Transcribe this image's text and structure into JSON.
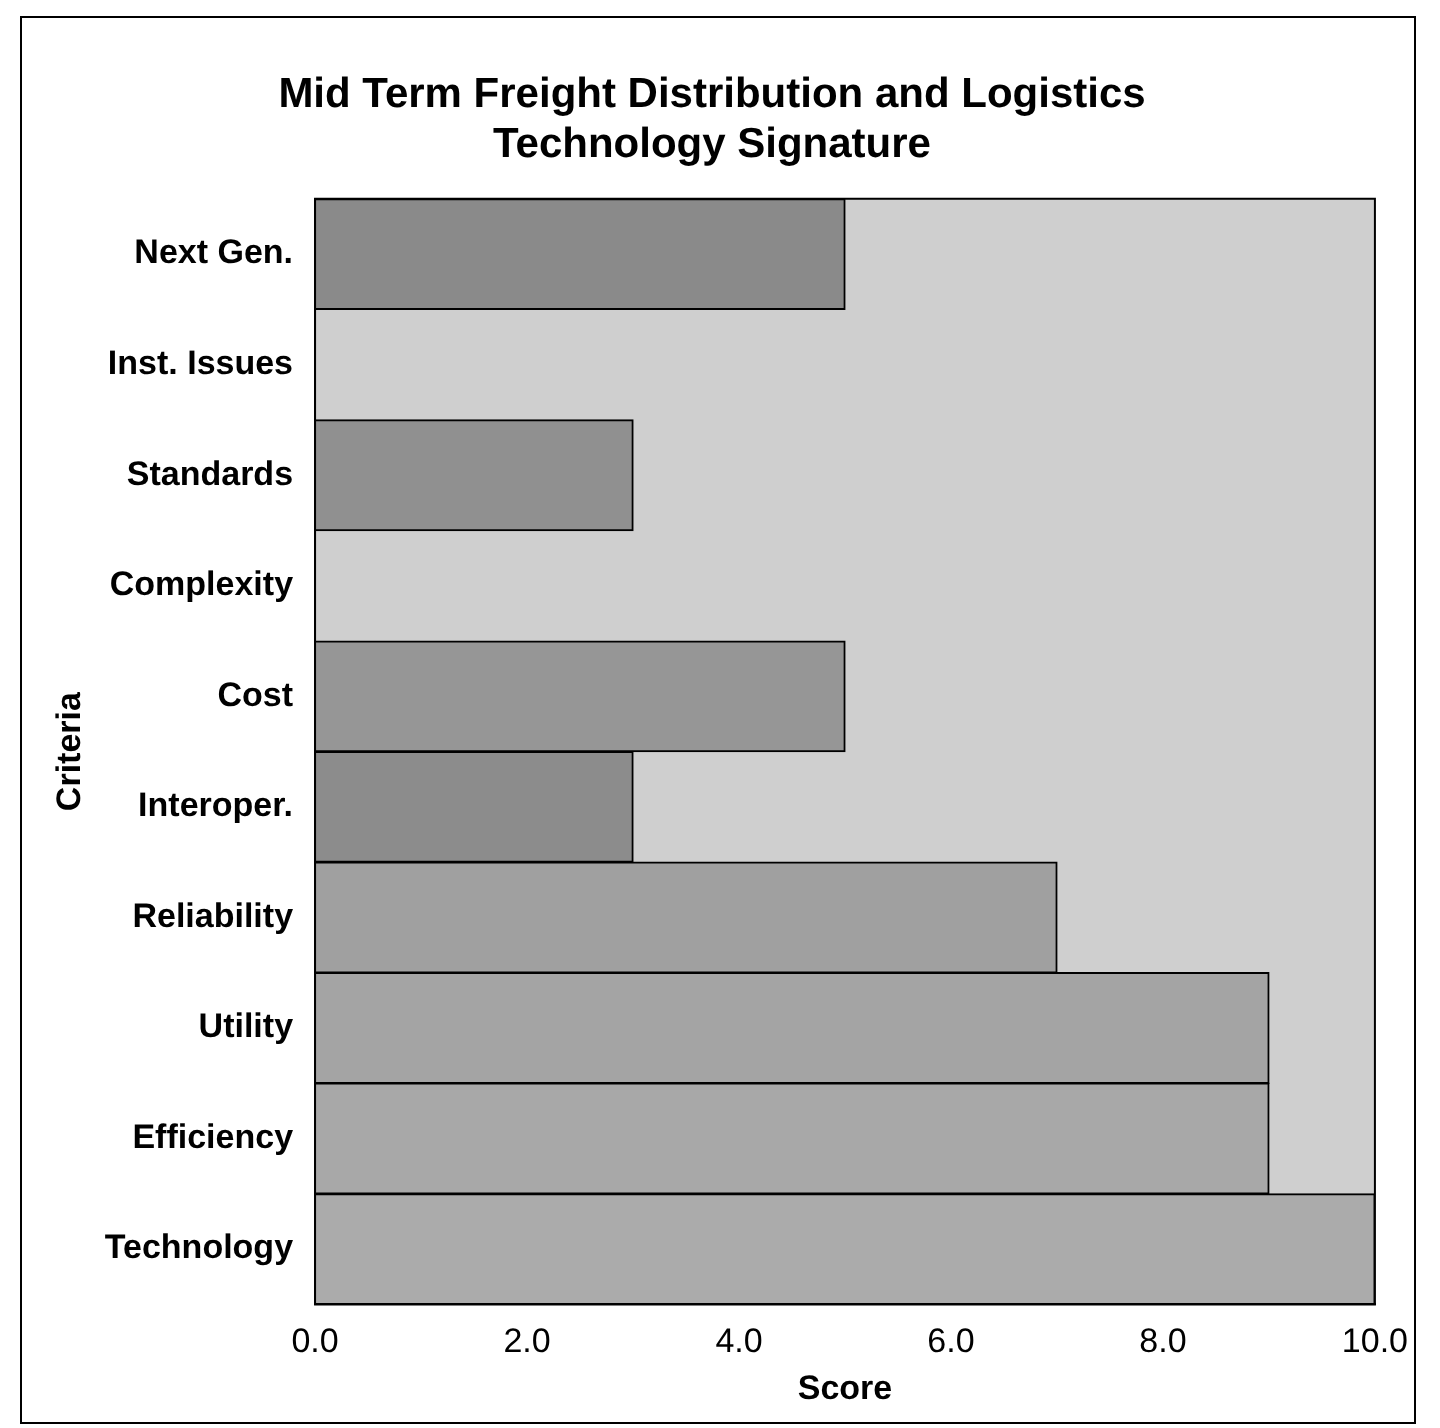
{
  "chart_data": {
    "type": "bar",
    "orientation": "horizontal",
    "title": [
      "Mid Term Freight Distribution and Logistics",
      "Technology Signature"
    ],
    "xlabel": "Score",
    "ylabel": "Criteria",
    "categories": [
      "Next Gen.",
      "Inst. Issues",
      "Standards",
      "Complexity",
      "Cost",
      "Interoper.",
      "Reliability",
      "Utility",
      "Efficiency",
      "Technology"
    ],
    "values": [
      5,
      0,
      3,
      0,
      5,
      3,
      7,
      9,
      9,
      10
    ],
    "colors": [
      "#8a8a8a",
      "#8e8e8e",
      "#909090",
      "#939393",
      "#969696",
      "#8c8c8c",
      "#a0a0a0",
      "#a4a4a4",
      "#a8a8a8",
      "#ababab"
    ],
    "xlim": [
      0,
      10
    ],
    "xticks": [
      {
        "value": 0,
        "label": "0.0"
      },
      {
        "value": 2,
        "label": "2.0"
      },
      {
        "value": 4,
        "label": "4.0"
      },
      {
        "value": 6,
        "label": "6.0"
      },
      {
        "value": 8,
        "label": "8.0"
      },
      {
        "value": 10,
        "label": "10.0"
      }
    ],
    "grid": false,
    "legend": false
  }
}
